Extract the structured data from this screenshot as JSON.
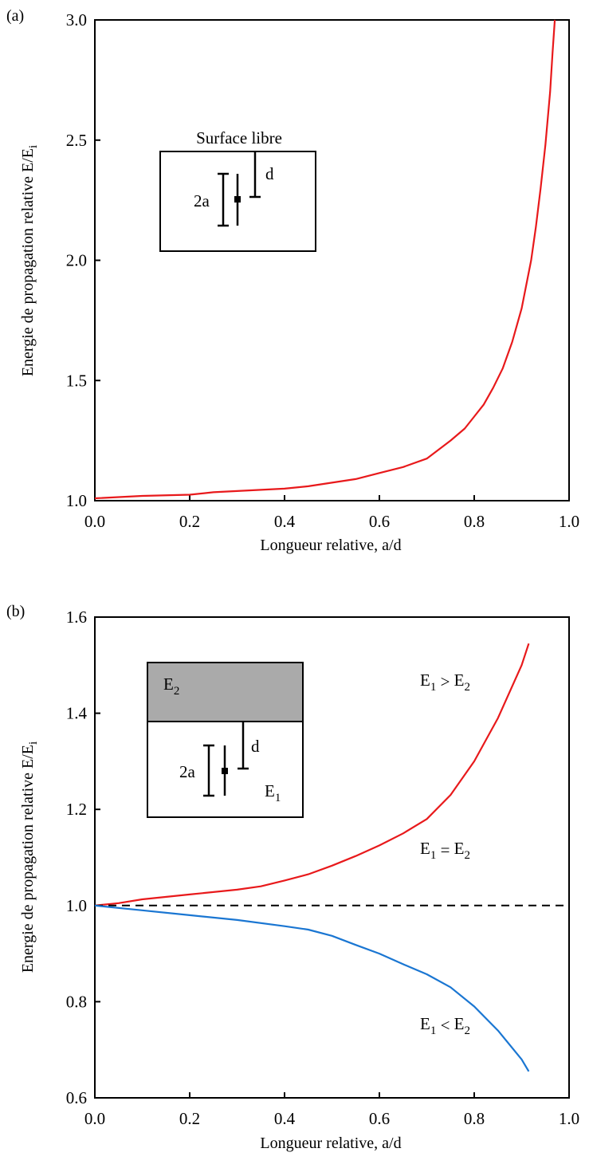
{
  "chart_data": [
    {
      "panel_label": "(a)",
      "type": "line",
      "xlabel": "Longueur relative, a/d",
      "ylabel": "Energie de propagation relative E/E",
      "ylabel_sub": "i",
      "xlim": [
        0.0,
        1.0
      ],
      "ylim": [
        1.0,
        3.0
      ],
      "xticks": [
        "0.0",
        "0.2",
        "0.4",
        "0.6",
        "0.8",
        "1.0"
      ],
      "yticks": [
        "1.0",
        "1.5",
        "2.0",
        "2.5",
        "3.0"
      ],
      "grid": false,
      "series": [
        {
          "color": "#e8191b",
          "x": [
            0.0,
            0.1,
            0.2,
            0.25,
            0.3,
            0.35,
            0.4,
            0.45,
            0.5,
            0.55,
            0.6,
            0.65,
            0.7,
            0.75,
            0.78,
            0.8,
            0.82,
            0.84,
            0.86,
            0.88,
            0.9,
            0.92,
            0.93,
            0.94,
            0.95,
            0.96,
            0.965,
            0.97
          ],
          "y": [
            1.01,
            1.02,
            1.025,
            1.035,
            1.04,
            1.045,
            1.05,
            1.06,
            1.075,
            1.09,
            1.115,
            1.14,
            1.175,
            1.25,
            1.3,
            1.35,
            1.4,
            1.47,
            1.55,
            1.66,
            1.8,
            2.0,
            2.14,
            2.3,
            2.48,
            2.7,
            2.86,
            3.0
          ]
        }
      ],
      "inset": {
        "title": "Surface libre",
        "crack_label": "2a",
        "distance_label": "d"
      }
    },
    {
      "panel_label": "(b)",
      "type": "line",
      "xlabel": "Longueur relative, a/d",
      "ylabel": "Energie de propagation relative E/E",
      "ylabel_sub": "i",
      "xlim": [
        0.0,
        1.0
      ],
      "ylim": [
        0.6,
        1.6
      ],
      "xticks": [
        "0.0",
        "0.2",
        "0.4",
        "0.6",
        "0.8",
        "1.0"
      ],
      "yticks": [
        "0.6",
        "0.8",
        "1.0",
        "1.2",
        "1.4",
        "1.6"
      ],
      "grid": false,
      "series": [
        {
          "label": "E1 > E2",
          "color": "#e8191b",
          "dash": false,
          "x": [
            0.0,
            0.05,
            0.1,
            0.2,
            0.3,
            0.35,
            0.4,
            0.45,
            0.5,
            0.55,
            0.6,
            0.65,
            0.7,
            0.75,
            0.8,
            0.85,
            0.9,
            0.915
          ],
          "y": [
            1.0,
            1.005,
            1.013,
            1.023,
            1.033,
            1.04,
            1.052,
            1.065,
            1.083,
            1.103,
            1.125,
            1.15,
            1.18,
            1.23,
            1.3,
            1.39,
            1.5,
            1.545
          ]
        },
        {
          "label": "E1 = E2",
          "color": "#000000",
          "dash": true,
          "x": [
            0.0,
            1.0
          ],
          "y": [
            1.0,
            1.0
          ]
        },
        {
          "label": "E1 < E2",
          "color": "#1a76d2",
          "dash": false,
          "x": [
            0.0,
            0.1,
            0.2,
            0.3,
            0.4,
            0.45,
            0.5,
            0.55,
            0.6,
            0.65,
            0.7,
            0.75,
            0.8,
            0.85,
            0.9,
            0.915
          ],
          "y": [
            1.0,
            0.99,
            0.98,
            0.97,
            0.957,
            0.95,
            0.937,
            0.918,
            0.9,
            0.878,
            0.857,
            0.83,
            0.79,
            0.74,
            0.68,
            0.655
          ]
        }
      ],
      "inset": {
        "top_material": "E",
        "top_material_sub": "2",
        "bottom_material": "E",
        "bottom_material_sub": "1",
        "crack_label": "2a",
        "distance_label": "d"
      },
      "annotations": [
        {
          "main": "E",
          "sub": "1",
          "op": " > ",
          "main2": "E",
          "sub2": "2"
        },
        {
          "main": "E",
          "sub": "1",
          "op": " = ",
          "main2": "E",
          "sub2": "2"
        },
        {
          "main": "E",
          "sub": "1",
          "op": " < ",
          "main2": "E",
          "sub2": "2"
        }
      ]
    }
  ]
}
